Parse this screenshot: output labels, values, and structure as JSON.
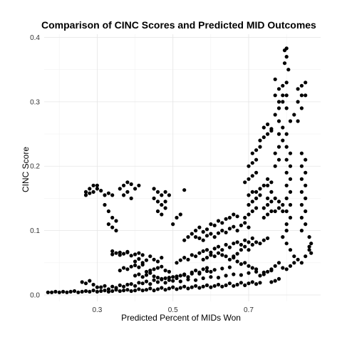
{
  "chart_data": {
    "type": "scatter",
    "title": "Comparison of CINC Scores and Predicted MID Outcomes",
    "xlabel": "Predicted Percent of MIDs Won",
    "ylabel": "CINC Score",
    "xlim": [
      0.16,
      0.89
    ],
    "ylim": [
      -0.01,
      0.405
    ],
    "x_ticks": [
      {
        "value": 0.3,
        "label": "0.3"
      },
      {
        "value": 0.5,
        "label": "0.5"
      },
      {
        "value": 0.7,
        "label": "0.7"
      }
    ],
    "y_ticks": [
      {
        "value": 0.0,
        "label": "0.0"
      },
      {
        "value": 0.1,
        "label": "0.1"
      },
      {
        "value": 0.2,
        "label": "0.2"
      },
      {
        "value": 0.3,
        "label": "0.3"
      },
      {
        "value": 0.4,
        "label": "0.4"
      }
    ],
    "grid": true,
    "point_color": "#000000",
    "points": [
      [
        0.17,
        0.004
      ],
      [
        0.18,
        0.004
      ],
      [
        0.19,
        0.005
      ],
      [
        0.2,
        0.004
      ],
      [
        0.21,
        0.005
      ],
      [
        0.22,
        0.004
      ],
      [
        0.23,
        0.005
      ],
      [
        0.24,
        0.006
      ],
      [
        0.25,
        0.004
      ],
      [
        0.26,
        0.005
      ],
      [
        0.27,
        0.006
      ],
      [
        0.28,
        0.005
      ],
      [
        0.29,
        0.007
      ],
      [
        0.3,
        0.005
      ],
      [
        0.31,
        0.006
      ],
      [
        0.32,
        0.007
      ],
      [
        0.33,
        0.005
      ],
      [
        0.34,
        0.006
      ],
      [
        0.35,
        0.008
      ],
      [
        0.36,
        0.006
      ],
      [
        0.37,
        0.007
      ],
      [
        0.38,
        0.008
      ],
      [
        0.39,
        0.006
      ],
      [
        0.4,
        0.007
      ],
      [
        0.41,
        0.009
      ],
      [
        0.42,
        0.007
      ],
      [
        0.43,
        0.008
      ],
      [
        0.44,
        0.01
      ],
      [
        0.45,
        0.007
      ],
      [
        0.46,
        0.009
      ],
      [
        0.47,
        0.011
      ],
      [
        0.48,
        0.008
      ],
      [
        0.49,
        0.01
      ],
      [
        0.5,
        0.012
      ],
      [
        0.51,
        0.009
      ],
      [
        0.52,
        0.011
      ],
      [
        0.53,
        0.013
      ],
      [
        0.54,
        0.01
      ],
      [
        0.55,
        0.012
      ],
      [
        0.56,
        0.014
      ],
      [
        0.57,
        0.011
      ],
      [
        0.58,
        0.013
      ],
      [
        0.59,
        0.015
      ],
      [
        0.6,
        0.012
      ],
      [
        0.61,
        0.014
      ],
      [
        0.62,
        0.016
      ],
      [
        0.63,
        0.013
      ],
      [
        0.64,
        0.015
      ],
      [
        0.65,
        0.018
      ],
      [
        0.66,
        0.014
      ],
      [
        0.67,
        0.016
      ],
      [
        0.68,
        0.019
      ],
      [
        0.69,
        0.015
      ],
      [
        0.7,
        0.018
      ],
      [
        0.71,
        0.02
      ],
      [
        0.72,
        0.017
      ],
      [
        0.73,
        0.019
      ],
      [
        0.3,
        0.012
      ],
      [
        0.32,
        0.014
      ],
      [
        0.34,
        0.013
      ],
      [
        0.36,
        0.015
      ],
      [
        0.38,
        0.016
      ],
      [
        0.4,
        0.014
      ],
      [
        0.42,
        0.018
      ],
      [
        0.44,
        0.017
      ],
      [
        0.46,
        0.02
      ],
      [
        0.48,
        0.019
      ],
      [
        0.5,
        0.022
      ],
      [
        0.52,
        0.021
      ],
      [
        0.54,
        0.024
      ],
      [
        0.56,
        0.023
      ],
      [
        0.58,
        0.026
      ],
      [
        0.6,
        0.028
      ],
      [
        0.62,
        0.027
      ],
      [
        0.64,
        0.03
      ],
      [
        0.66,
        0.032
      ],
      [
        0.68,
        0.031
      ],
      [
        0.7,
        0.034
      ],
      [
        0.72,
        0.036
      ],
      [
        0.74,
        0.035
      ],
      [
        0.76,
        0.038
      ],
      [
        0.26,
        0.02
      ],
      [
        0.27,
        0.018
      ],
      [
        0.28,
        0.022
      ],
      [
        0.29,
        0.016
      ],
      [
        0.31,
        0.012
      ],
      [
        0.33,
        0.009
      ],
      [
        0.35,
        0.011
      ],
      [
        0.37,
        0.013
      ],
      [
        0.39,
        0.017
      ],
      [
        0.41,
        0.019
      ],
      [
        0.43,
        0.021
      ],
      [
        0.45,
        0.023
      ],
      [
        0.47,
        0.025
      ],
      [
        0.49,
        0.027
      ],
      [
        0.51,
        0.029
      ],
      [
        0.53,
        0.031
      ],
      [
        0.55,
        0.033
      ],
      [
        0.57,
        0.035
      ],
      [
        0.59,
        0.037
      ],
      [
        0.61,
        0.039
      ],
      [
        0.63,
        0.041
      ],
      [
        0.65,
        0.043
      ],
      [
        0.4,
        0.03
      ],
      [
        0.41,
        0.032
      ],
      [
        0.42,
        0.028
      ],
      [
        0.43,
        0.031
      ],
      [
        0.44,
        0.034
      ],
      [
        0.45,
        0.029
      ],
      [
        0.46,
        0.027
      ],
      [
        0.47,
        0.024
      ],
      [
        0.48,
        0.026
      ],
      [
        0.49,
        0.023
      ],
      [
        0.5,
        0.028
      ],
      [
        0.51,
        0.026
      ],
      [
        0.52,
        0.03
      ],
      [
        0.53,
        0.032
      ],
      [
        0.54,
        0.028
      ],
      [
        0.55,
        0.035
      ],
      [
        0.56,
        0.038
      ],
      [
        0.57,
        0.033
      ],
      [
        0.58,
        0.04
      ],
      [
        0.59,
        0.042
      ],
      [
        0.6,
        0.036
      ],
      [
        0.43,
        0.036
      ],
      [
        0.44,
        0.038
      ],
      [
        0.45,
        0.04
      ],
      [
        0.46,
        0.042
      ],
      [
        0.47,
        0.044
      ],
      [
        0.48,
        0.038
      ],
      [
        0.49,
        0.036
      ],
      [
        0.36,
        0.038
      ],
      [
        0.37,
        0.042
      ],
      [
        0.38,
        0.04
      ],
      [
        0.39,
        0.044
      ],
      [
        0.4,
        0.046
      ],
      [
        0.41,
        0.043
      ],
      [
        0.42,
        0.047
      ],
      [
        0.4,
        0.052
      ],
      [
        0.41,
        0.056
      ],
      [
        0.42,
        0.05
      ],
      [
        0.43,
        0.054
      ],
      [
        0.44,
        0.06
      ],
      [
        0.45,
        0.055
      ],
      [
        0.46,
        0.052
      ],
      [
        0.47,
        0.058
      ],
      [
        0.34,
        0.063
      ],
      [
        0.35,
        0.065
      ],
      [
        0.36,
        0.062
      ],
      [
        0.37,
        0.064
      ],
      [
        0.38,
        0.066
      ],
      [
        0.39,
        0.061
      ],
      [
        0.4,
        0.063
      ],
      [
        0.41,
        0.065
      ],
      [
        0.42,
        0.062
      ],
      [
        0.34,
        0.068
      ],
      [
        0.36,
        0.066
      ],
      [
        0.38,
        0.067
      ],
      [
        0.51,
        0.05
      ],
      [
        0.52,
        0.054
      ],
      [
        0.53,
        0.058
      ],
      [
        0.54,
        0.055
      ],
      [
        0.55,
        0.062
      ],
      [
        0.56,
        0.06
      ],
      [
        0.57,
        0.065
      ],
      [
        0.58,
        0.068
      ],
      [
        0.59,
        0.07
      ],
      [
        0.6,
        0.066
      ],
      [
        0.61,
        0.072
      ],
      [
        0.62,
        0.075
      ],
      [
        0.63,
        0.07
      ],
      [
        0.64,
        0.078
      ],
      [
        0.65,
        0.074
      ],
      [
        0.66,
        0.08
      ],
      [
        0.67,
        0.082
      ],
      [
        0.68,
        0.078
      ],
      [
        0.69,
        0.085
      ],
      [
        0.7,
        0.082
      ],
      [
        0.71,
        0.088
      ],
      [
        0.53,
        0.085
      ],
      [
        0.54,
        0.09
      ],
      [
        0.55,
        0.095
      ],
      [
        0.56,
        0.1
      ],
      [
        0.57,
        0.105
      ],
      [
        0.58,
        0.098
      ],
      [
        0.59,
        0.102
      ],
      [
        0.6,
        0.11
      ],
      [
        0.61,
        0.108
      ],
      [
        0.62,
        0.115
      ],
      [
        0.63,
        0.112
      ],
      [
        0.64,
        0.118
      ],
      [
        0.65,
        0.12
      ],
      [
        0.66,
        0.125
      ],
      [
        0.67,
        0.122
      ],
      [
        0.56,
        0.09
      ],
      [
        0.57,
        0.088
      ],
      [
        0.58,
        0.085
      ],
      [
        0.59,
        0.092
      ],
      [
        0.6,
        0.095
      ],
      [
        0.61,
        0.09
      ],
      [
        0.62,
        0.096
      ],
      [
        0.63,
        0.1
      ],
      [
        0.64,
        0.097
      ],
      [
        0.65,
        0.103
      ],
      [
        0.66,
        0.106
      ],
      [
        0.67,
        0.1
      ],
      [
        0.68,
        0.108
      ],
      [
        0.69,
        0.112
      ],
      [
        0.7,
        0.105
      ],
      [
        0.58,
        0.055
      ],
      [
        0.59,
        0.058
      ],
      [
        0.6,
        0.062
      ],
      [
        0.61,
        0.06
      ],
      [
        0.62,
        0.065
      ],
      [
        0.63,
        0.062
      ],
      [
        0.64,
        0.06
      ],
      [
        0.65,
        0.055
      ],
      [
        0.66,
        0.058
      ],
      [
        0.67,
        0.052
      ],
      [
        0.68,
        0.048
      ],
      [
        0.69,
        0.05
      ],
      [
        0.7,
        0.045
      ],
      [
        0.71,
        0.042
      ],
      [
        0.72,
        0.04
      ],
      [
        0.66,
        0.06
      ],
      [
        0.67,
        0.064
      ],
      [
        0.68,
        0.07
      ],
      [
        0.69,
        0.075
      ],
      [
        0.7,
        0.07
      ],
      [
        0.71,
        0.078
      ],
      [
        0.72,
        0.082
      ],
      [
        0.73,
        0.08
      ],
      [
        0.74,
        0.085
      ],
      [
        0.75,
        0.088
      ],
      [
        0.69,
        0.12
      ],
      [
        0.7,
        0.125
      ],
      [
        0.71,
        0.13
      ],
      [
        0.72,
        0.135
      ],
      [
        0.7,
        0.14
      ],
      [
        0.71,
        0.145
      ],
      [
        0.72,
        0.15
      ],
      [
        0.73,
        0.155
      ],
      [
        0.72,
        0.16
      ],
      [
        0.73,
        0.165
      ],
      [
        0.74,
        0.17
      ],
      [
        0.71,
        0.16
      ],
      [
        0.7,
        0.155
      ],
      [
        0.69,
        0.175
      ],
      [
        0.7,
        0.18
      ],
      [
        0.71,
        0.185
      ],
      [
        0.72,
        0.19
      ],
      [
        0.7,
        0.2
      ],
      [
        0.71,
        0.205
      ],
      [
        0.72,
        0.21
      ],
      [
        0.71,
        0.22
      ],
      [
        0.72,
        0.225
      ],
      [
        0.73,
        0.23
      ],
      [
        0.73,
        0.24
      ],
      [
        0.74,
        0.245
      ],
      [
        0.75,
        0.25
      ],
      [
        0.76,
        0.255
      ],
      [
        0.74,
        0.26
      ],
      [
        0.75,
        0.265
      ],
      [
        0.76,
        0.258
      ],
      [
        0.74,
        0.12
      ],
      [
        0.75,
        0.125
      ],
      [
        0.76,
        0.13
      ],
      [
        0.74,
        0.135
      ],
      [
        0.75,
        0.14
      ],
      [
        0.76,
        0.145
      ],
      [
        0.75,
        0.15
      ],
      [
        0.76,
        0.16
      ],
      [
        0.75,
        0.17
      ],
      [
        0.76,
        0.175
      ],
      [
        0.75,
        0.18
      ],
      [
        0.77,
        0.2
      ],
      [
        0.78,
        0.21
      ],
      [
        0.77,
        0.22
      ],
      [
        0.78,
        0.23
      ],
      [
        0.79,
        0.24
      ],
      [
        0.78,
        0.25
      ],
      [
        0.79,
        0.26
      ],
      [
        0.78,
        0.27
      ],
      [
        0.77,
        0.28
      ],
      [
        0.78,
        0.29
      ],
      [
        0.79,
        0.3
      ],
      [
        0.77,
        0.31
      ],
      [
        0.78,
        0.32
      ],
      [
        0.79,
        0.325
      ],
      [
        0.8,
        0.31
      ],
      [
        0.8,
        0.29
      ],
      [
        0.81,
        0.27
      ],
      [
        0.8,
        0.25
      ],
      [
        0.77,
        0.335
      ],
      [
        0.78,
        0.3
      ],
      [
        0.79,
        0.31
      ],
      [
        0.8,
        0.33
      ],
      [
        0.795,
        0.36
      ],
      [
        0.8,
        0.37
      ],
      [
        0.795,
        0.38
      ],
      [
        0.8,
        0.383
      ],
      [
        0.805,
        0.35
      ],
      [
        0.8,
        0.11
      ],
      [
        0.81,
        0.12
      ],
      [
        0.8,
        0.13
      ],
      [
        0.81,
        0.14
      ],
      [
        0.8,
        0.15
      ],
      [
        0.81,
        0.16
      ],
      [
        0.8,
        0.17
      ],
      [
        0.81,
        0.18
      ],
      [
        0.8,
        0.19
      ],
      [
        0.81,
        0.2
      ],
      [
        0.8,
        0.21
      ],
      [
        0.81,
        0.22
      ],
      [
        0.8,
        0.23
      ],
      [
        0.77,
        0.13
      ],
      [
        0.78,
        0.135
      ],
      [
        0.79,
        0.14
      ],
      [
        0.78,
        0.145
      ],
      [
        0.77,
        0.15
      ],
      [
        0.79,
        0.13
      ],
      [
        0.8,
        0.1
      ],
      [
        0.79,
        0.09
      ],
      [
        0.8,
        0.08
      ],
      [
        0.81,
        0.07
      ],
      [
        0.82,
        0.28
      ],
      [
        0.83,
        0.3
      ],
      [
        0.84,
        0.31
      ],
      [
        0.83,
        0.32
      ],
      [
        0.84,
        0.325
      ],
      [
        0.85,
        0.33
      ],
      [
        0.85,
        0.31
      ],
      [
        0.84,
        0.29
      ],
      [
        0.83,
        0.27
      ],
      [
        0.84,
        0.2
      ],
      [
        0.85,
        0.21
      ],
      [
        0.84,
        0.22
      ],
      [
        0.85,
        0.19
      ],
      [
        0.84,
        0.18
      ],
      [
        0.85,
        0.17
      ],
      [
        0.84,
        0.16
      ],
      [
        0.85,
        0.15
      ],
      [
        0.84,
        0.14
      ],
      [
        0.85,
        0.13
      ],
      [
        0.84,
        0.12
      ],
      [
        0.85,
        0.11
      ],
      [
        0.84,
        0.1
      ],
      [
        0.86,
        0.07
      ],
      [
        0.86,
        0.075
      ],
      [
        0.865,
        0.08
      ],
      [
        0.86,
        0.09
      ],
      [
        0.865,
        0.065
      ],
      [
        0.82,
        0.06
      ],
      [
        0.83,
        0.055
      ],
      [
        0.84,
        0.05
      ],
      [
        0.85,
        0.06
      ],
      [
        0.73,
        0.03
      ],
      [
        0.74,
        0.032
      ],
      [
        0.75,
        0.036
      ],
      [
        0.76,
        0.04
      ],
      [
        0.77,
        0.045
      ],
      [
        0.78,
        0.05
      ],
      [
        0.79,
        0.042
      ],
      [
        0.8,
        0.04
      ],
      [
        0.81,
        0.045
      ],
      [
        0.82,
        0.05
      ],
      [
        0.76,
        0.02
      ],
      [
        0.77,
        0.022
      ],
      [
        0.78,
        0.025
      ],
      [
        0.27,
        0.16
      ],
      [
        0.28,
        0.165
      ],
      [
        0.29,
        0.17
      ],
      [
        0.3,
        0.165
      ],
      [
        0.27,
        0.155
      ],
      [
        0.28,
        0.158
      ],
      [
        0.3,
        0.17
      ],
      [
        0.31,
        0.162
      ],
      [
        0.29,
        0.16
      ],
      [
        0.32,
        0.155
      ],
      [
        0.33,
        0.158
      ],
      [
        0.34,
        0.155
      ],
      [
        0.32,
        0.14
      ],
      [
        0.33,
        0.13
      ],
      [
        0.34,
        0.12
      ],
      [
        0.35,
        0.115
      ],
      [
        0.33,
        0.11
      ],
      [
        0.34,
        0.105
      ],
      [
        0.35,
        0.1
      ],
      [
        0.36,
        0.165
      ],
      [
        0.37,
        0.17
      ],
      [
        0.38,
        0.175
      ],
      [
        0.39,
        0.172
      ],
      [
        0.38,
        0.16
      ],
      [
        0.37,
        0.155
      ],
      [
        0.39,
        0.15
      ],
      [
        0.41,
        0.17
      ],
      [
        0.4,
        0.165
      ],
      [
        0.45,
        0.165
      ],
      [
        0.46,
        0.16
      ],
      [
        0.47,
        0.155
      ],
      [
        0.45,
        0.15
      ],
      [
        0.46,
        0.145
      ],
      [
        0.47,
        0.14
      ],
      [
        0.48,
        0.135
      ],
      [
        0.46,
        0.13
      ],
      [
        0.47,
        0.125
      ],
      [
        0.48,
        0.145
      ],
      [
        0.49,
        0.155
      ],
      [
        0.48,
        0.16
      ],
      [
        0.5,
        0.11
      ],
      [
        0.51,
        0.12
      ],
      [
        0.52,
        0.125
      ],
      [
        0.53,
        0.163
      ]
    ]
  }
}
